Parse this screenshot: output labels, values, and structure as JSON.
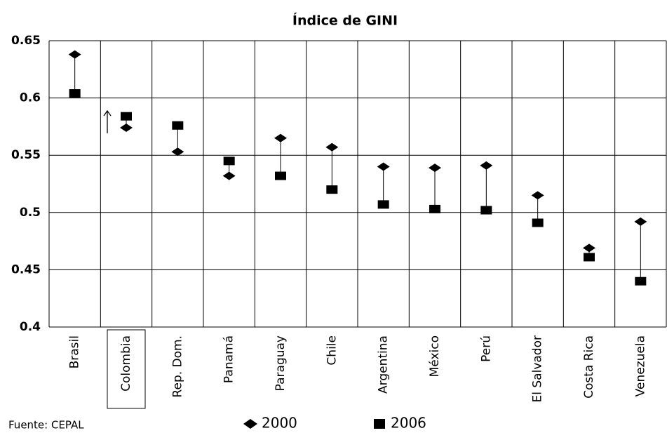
{
  "chart_data": {
    "type": "dot_range",
    "title": "Índice de GINI",
    "categories": [
      "Brasil",
      "Colombia",
      "Rep. Dom.",
      "Panamá",
      "Paraguay",
      "Chile",
      "Argentina",
      "México",
      "Perú",
      "El Salvador",
      "Costa Rica",
      "Venezuela"
    ],
    "series": [
      {
        "name": "2000",
        "color": "#000000",
        "marker": "diamond",
        "values": [
          0.638,
          0.574,
          0.553,
          0.532,
          0.565,
          0.557,
          0.54,
          0.539,
          0.541,
          0.515,
          0.469,
          0.492
        ]
      },
      {
        "name": "2006",
        "color": "#000000",
        "marker": "square",
        "values": [
          0.604,
          0.584,
          0.576,
          0.545,
          0.532,
          0.52,
          0.507,
          0.503,
          0.502,
          0.491,
          0.461,
          0.44
        ]
      }
    ],
    "ylim": [
      0.4,
      0.65
    ],
    "yticks": [
      0.4,
      0.45,
      0.5,
      0.55,
      0.6,
      0.65
    ],
    "grid": true,
    "source": "Fuente: CEPAL",
    "legend": "bottom"
  }
}
